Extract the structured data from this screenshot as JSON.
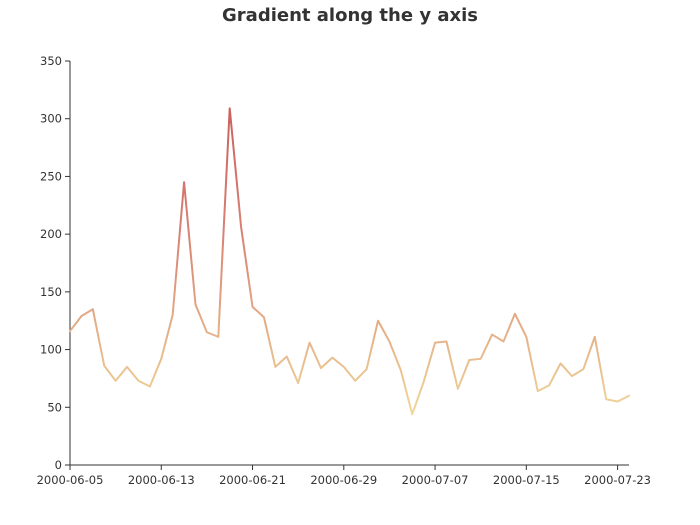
{
  "chart_data": {
    "type": "line",
    "title": "Gradient along the y axis",
    "xlabel": "",
    "ylabel": "",
    "x_type": "date",
    "xlim": [
      "2000-06-05",
      "2000-07-24"
    ],
    "ylim": [
      0,
      350
    ],
    "y_ticks": [
      0,
      50,
      100,
      150,
      200,
      250,
      300,
      350
    ],
    "x_ticks": [
      "2000-06-05",
      "2000-06-13",
      "2000-06-21",
      "2000-06-29",
      "2000-07-07",
      "2000-07-15",
      "2000-07-23"
    ],
    "grid": false,
    "legend": "none",
    "visual_map": {
      "dimension": "y",
      "min": 0,
      "max": 400,
      "colors": [
        "#f6efa6",
        "#d88273",
        "#bf444c"
      ]
    },
    "x": [
      "2000-06-05",
      "2000-06-06",
      "2000-06-07",
      "2000-06-08",
      "2000-06-09",
      "2000-06-10",
      "2000-06-11",
      "2000-06-12",
      "2000-06-13",
      "2000-06-14",
      "2000-06-15",
      "2000-06-16",
      "2000-06-17",
      "2000-06-18",
      "2000-06-19",
      "2000-06-20",
      "2000-06-21",
      "2000-06-22",
      "2000-06-23",
      "2000-06-24",
      "2000-06-25",
      "2000-06-26",
      "2000-06-27",
      "2000-06-28",
      "2000-06-29",
      "2000-06-30",
      "2000-07-01",
      "2000-07-02",
      "2000-07-03",
      "2000-07-04",
      "2000-07-05",
      "2000-07-06",
      "2000-07-07",
      "2000-07-08",
      "2000-07-09",
      "2000-07-10",
      "2000-07-11",
      "2000-07-12",
      "2000-07-13",
      "2000-07-14",
      "2000-07-15",
      "2000-07-16",
      "2000-07-17",
      "2000-07-18",
      "2000-07-19",
      "2000-07-20",
      "2000-07-21",
      "2000-07-22",
      "2000-07-23",
      "2000-07-24"
    ],
    "series": [
      {
        "values": [
          116,
          129,
          135,
          86,
          73,
          85,
          73,
          68,
          92,
          130,
          245,
          139,
          115,
          111,
          309,
          206,
          137,
          128,
          85,
          94,
          71,
          106,
          84,
          93,
          85,
          73,
          83,
          125,
          107,
          82,
          44,
          72,
          106,
          107,
          66,
          91,
          92,
          113,
          107,
          131,
          111,
          64,
          69,
          88,
          77,
          83,
          111,
          57,
          55,
          60
        ]
      }
    ]
  }
}
